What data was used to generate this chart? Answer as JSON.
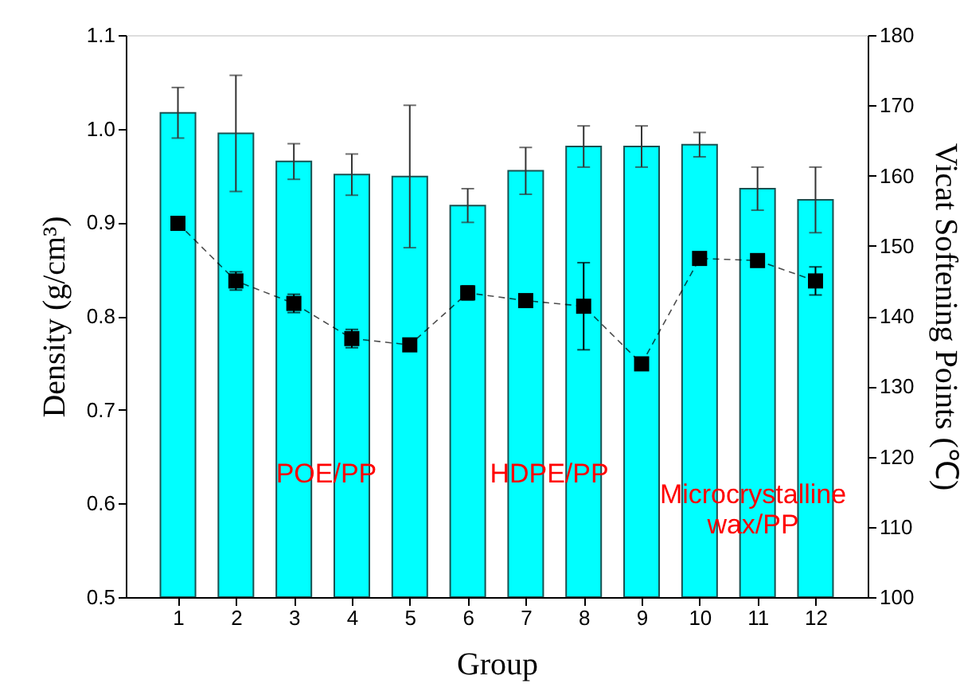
{
  "chart_data": {
    "type": "bar",
    "xlabel": "Group",
    "ylabel": "Density (g/cm³)",
    "y2label": "Vicat Softening Points (℃)",
    "x": [
      1,
      2,
      3,
      4,
      5,
      6,
      7,
      8,
      9,
      10,
      11,
      12
    ],
    "xlim": [
      0.1,
      12.9
    ],
    "xticks": [
      1,
      2,
      3,
      4,
      5,
      6,
      7,
      8,
      9,
      10,
      11,
      12
    ],
    "ylim": [
      0.5,
      1.1
    ],
    "yticks": [
      0.5,
      0.6,
      0.7,
      0.8,
      0.9,
      {
        "value": 1,
        "label": "1.0"
      },
      1.1
    ],
    "y2lim": [
      100,
      180
    ],
    "y2ticks": [
      100,
      110,
      120,
      130,
      140,
      150,
      160,
      170,
      180
    ],
    "series": [
      {
        "color": "#00ffff",
        "values": [
          1.017,
          0.995,
          0.965,
          0.951,
          0.949,
          0.918,
          0.955,
          0.981,
          0.981,
          0.983,
          0.936,
          0.924
        ],
        "errors": [
          0.027,
          0.062,
          0.019,
          0.022,
          0.076,
          0.018,
          0.025,
          0.022,
          0.022,
          0.013,
          0.023,
          0.035
        ]
      },
      {
        "type": "line",
        "axis": "y2",
        "color": "#000000",
        "marker": "square",
        "line_style": "dashed",
        "values": [
          153.2,
          145.0,
          141.8,
          136.8,
          135.9,
          143.3,
          142.2,
          141.4,
          133.2,
          148.2,
          147.9,
          145.0
        ],
        "errors": [
          null,
          1.3,
          1.3,
          1.3,
          0.8,
          1.0,
          0.8,
          6.2,
          0.5,
          0.8,
          0.8,
          2.0
        ]
      }
    ],
    "annotations": [
      "POE/PP",
      "HDPE/PP",
      "Microcrystalline wax/PP"
    ],
    "grid": false
  }
}
